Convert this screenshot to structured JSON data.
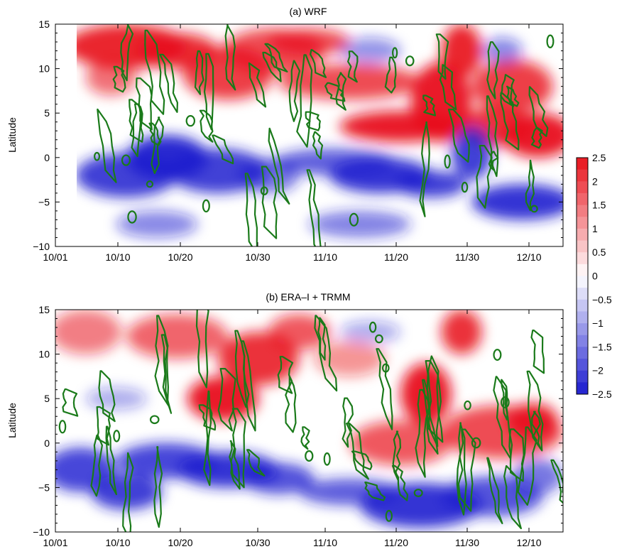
{
  "chart_data": [
    {
      "type": "heatmap",
      "title": "(a) WRF",
      "xlabel": "",
      "ylabel": "Latitude",
      "x_ticks": [
        "10/01",
        "10/10",
        "10/20",
        "10/30",
        "11/10",
        "11/20",
        "11/30",
        "12/10"
      ],
      "y_ticks": [
        "15",
        "10",
        "5",
        "0",
        "−5",
        "−10"
      ],
      "ylim": [
        -10,
        15
      ],
      "grid": false,
      "data_start_label": "10/04",
      "regions": [
        {
          "label": "northern positive band",
          "sign": "positive",
          "lat_range": [
            3,
            15
          ],
          "date_range": [
            "10/04",
            "11/05"
          ],
          "peak": 2.5
        },
        {
          "label": "southern negative band",
          "sign": "negative",
          "lat_range": [
            -8,
            5
          ],
          "date_range": [
            "10/04",
            "11/05"
          ],
          "peak": -2.5
        },
        {
          "label": "late-period positive band",
          "sign": "positive",
          "lat_range": [
            -2,
            15
          ],
          "date_range": [
            "11/05",
            "12/16"
          ],
          "peak": 2.5
        },
        {
          "label": "late-period negative band",
          "sign": "negative",
          "lat_range": [
            -10,
            0
          ],
          "date_range": [
            "11/05",
            "12/16"
          ],
          "peak": -2.5
        }
      ],
      "contour_color": "#1a7a1a"
    },
    {
      "type": "heatmap",
      "title": "(b) ERA–I + TRMM",
      "xlabel": "",
      "ylabel": "Latitude",
      "x_ticks": [
        "10/01",
        "10/10",
        "10/20",
        "10/30",
        "11/10",
        "11/20",
        "11/30",
        "12/10"
      ],
      "y_ticks": [
        "15",
        "10",
        "5",
        "0",
        "−5",
        "−10"
      ],
      "ylim": [
        -10,
        15
      ],
      "grid": false,
      "regions": [
        {
          "label": "northern positive band",
          "sign": "positive",
          "lat_range": [
            2,
            15
          ],
          "date_range": [
            "10/01",
            "11/10"
          ],
          "peak": 2.0
        },
        {
          "label": "southern negative band",
          "sign": "negative",
          "lat_range": [
            -9,
            2
          ],
          "date_range": [
            "10/01",
            "11/10"
          ],
          "peak": -2.0
        },
        {
          "label": "late-period positive band",
          "sign": "positive",
          "lat_range": [
            -2,
            10
          ],
          "date_range": [
            "11/12",
            "12/16"
          ],
          "peak": 2.0
        },
        {
          "label": "late-period negative band",
          "sign": "negative",
          "lat_range": [
            -10,
            -2
          ],
          "date_range": [
            "11/12",
            "12/16"
          ],
          "peak": -2.0
        }
      ],
      "contour_color": "#1a7a1a"
    }
  ],
  "colorbar": {
    "ticks": [
      "2.5",
      "2",
      "1.5",
      "1",
      "0.5",
      "0",
      "−0.5",
      "−1",
      "−1.5",
      "−2",
      "−2.5"
    ],
    "range": [
      -2.5,
      2.5
    ],
    "colors": {
      "positive": "#e8121b",
      "zero": "#ffffff",
      "negative": "#1c1ccf"
    }
  },
  "colors": {
    "axis": "#000000",
    "contour": "#1a7a1a"
  }
}
